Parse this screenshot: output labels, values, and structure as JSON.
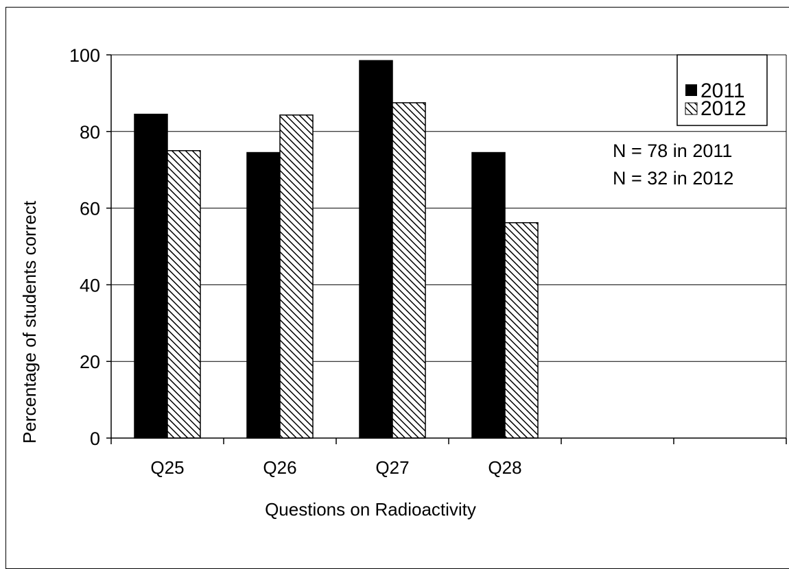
{
  "chart_data": {
    "type": "bar",
    "title": "",
    "xlabel": "Questions on Radioactivity",
    "ylabel": "Percentage of students correct",
    "ylim": [
      0,
      100
    ],
    "yticks": [
      0,
      20,
      40,
      60,
      80,
      100
    ],
    "categories": [
      "Q25",
      "Q26",
      "Q27",
      "Q28",
      "",
      ""
    ],
    "series": [
      {
        "name": "2011",
        "values": [
          84.5,
          74.5,
          98.5,
          74.5,
          null,
          null
        ],
        "fill": "#000000"
      },
      {
        "name": "2012",
        "values": [
          75,
          84.3,
          87.5,
          56.2,
          null,
          null
        ],
        "fill": "hatch"
      }
    ],
    "grid": true,
    "legend_position": "top-right",
    "annotations": [
      "N = 78  in 2011",
      "N = 32  in 2012"
    ]
  }
}
